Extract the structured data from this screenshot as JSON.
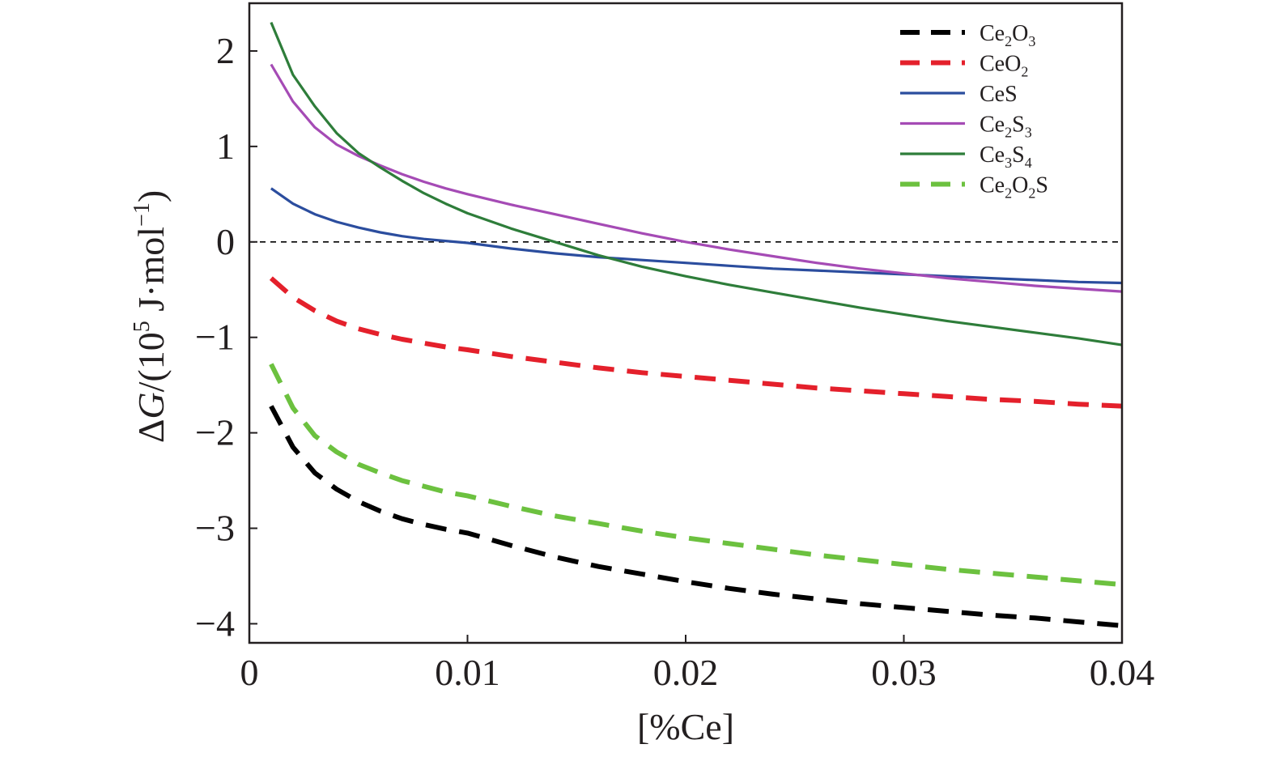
{
  "chart_data": {
    "type": "line",
    "title": "",
    "xlabel": "[%Ce]",
    "ylabel": "ΔG/(10⁵ J·mol⁻¹)",
    "xlim": [
      0,
      0.04
    ],
    "ylim": [
      -4.2,
      2.5
    ],
    "x_ticks": [
      0,
      0.01,
      0.02,
      0.03,
      0.04
    ],
    "x_tick_labels": [
      "0",
      "0.01",
      "0.02",
      "0.03",
      "0.04"
    ],
    "y_ticks": [
      -4,
      -3,
      -2,
      -1,
      0,
      1,
      2
    ],
    "y_tick_labels": [
      "−4",
      "−3",
      "−2",
      "−1",
      "0",
      "1",
      "2"
    ],
    "grid": false,
    "legend_position": "top-right",
    "reference_line": {
      "y": 0,
      "style": "dashed",
      "color": "#000000"
    },
    "x": [
      0.001,
      0.002,
      0.003,
      0.004,
      0.005,
      0.006,
      0.007,
      0.008,
      0.009,
      0.01,
      0.012,
      0.014,
      0.016,
      0.018,
      0.02,
      0.022,
      0.024,
      0.026,
      0.028,
      0.03,
      0.032,
      0.034,
      0.036,
      0.038,
      0.04
    ],
    "series": [
      {
        "name": "Ce2O3",
        "color": "#000000",
        "dashed": true,
        "values": [
          -1.72,
          -2.15,
          -2.42,
          -2.59,
          -2.72,
          -2.82,
          -2.9,
          -2.96,
          -3.01,
          -3.05,
          -3.18,
          -3.3,
          -3.4,
          -3.48,
          -3.56,
          -3.63,
          -3.69,
          -3.74,
          -3.79,
          -3.83,
          -3.87,
          -3.91,
          -3.94,
          -3.98,
          -4.02
        ]
      },
      {
        "name": "CeO2",
        "color": "#e4202b",
        "dashed": true,
        "values": [
          -0.38,
          -0.58,
          -0.72,
          -0.83,
          -0.91,
          -0.97,
          -1.02,
          -1.06,
          -1.1,
          -1.13,
          -1.2,
          -1.26,
          -1.32,
          -1.37,
          -1.41,
          -1.45,
          -1.49,
          -1.53,
          -1.56,
          -1.59,
          -1.62,
          -1.65,
          -1.67,
          -1.7,
          -1.72
        ]
      },
      {
        "name": "CeS",
        "color": "#2b4d9e",
        "dashed": false,
        "values": [
          0.56,
          0.4,
          0.29,
          0.21,
          0.15,
          0.1,
          0.06,
          0.03,
          0.01,
          -0.01,
          -0.07,
          -0.12,
          -0.16,
          -0.19,
          -0.22,
          -0.25,
          -0.28,
          -0.3,
          -0.32,
          -0.34,
          -0.36,
          -0.38,
          -0.4,
          -0.42,
          -0.43
        ]
      },
      {
        "name": "Ce2S3",
        "color": "#a54bb5",
        "dashed": false,
        "values": [
          1.86,
          1.47,
          1.2,
          1.02,
          0.9,
          0.8,
          0.71,
          0.63,
          0.56,
          0.5,
          0.39,
          0.29,
          0.19,
          0.09,
          0.0,
          -0.08,
          -0.15,
          -0.22,
          -0.28,
          -0.33,
          -0.38,
          -0.42,
          -0.46,
          -0.49,
          -0.52
        ]
      },
      {
        "name": "Ce3S4",
        "color": "#2e7d3a",
        "dashed": false,
        "values": [
          2.3,
          1.75,
          1.42,
          1.14,
          0.93,
          0.78,
          0.64,
          0.51,
          0.4,
          0.3,
          0.14,
          0.0,
          -0.14,
          -0.26,
          -0.36,
          -0.45,
          -0.53,
          -0.61,
          -0.69,
          -0.76,
          -0.83,
          -0.89,
          -0.95,
          -1.01,
          -1.08
        ]
      },
      {
        "name": "Ce2O2S",
        "color": "#6cc13f",
        "dashed": true,
        "values": [
          -1.28,
          -1.74,
          -2.03,
          -2.2,
          -2.33,
          -2.42,
          -2.5,
          -2.56,
          -2.62,
          -2.66,
          -2.77,
          -2.87,
          -2.95,
          -3.03,
          -3.1,
          -3.16,
          -3.22,
          -3.28,
          -3.33,
          -3.38,
          -3.43,
          -3.47,
          -3.51,
          -3.55,
          -3.59
        ]
      }
    ],
    "legend_labels": [
      {
        "base": "Ce",
        "sub1": "2",
        "mid": "O",
        "sub2": "3",
        "tail": ""
      },
      {
        "base": "CeO",
        "sub1": "2",
        "mid": "",
        "sub2": "",
        "tail": ""
      },
      {
        "base": "CeS",
        "sub1": "",
        "mid": "",
        "sub2": "",
        "tail": ""
      },
      {
        "base": "Ce",
        "sub1": "2",
        "mid": "S",
        "sub2": "3",
        "tail": ""
      },
      {
        "base": "Ce",
        "sub1": "3",
        "mid": "S",
        "sub2": "4",
        "tail": ""
      },
      {
        "base": "Ce",
        "sub1": "2",
        "mid": "O",
        "sub2": "2",
        "tail": "S"
      }
    ]
  }
}
